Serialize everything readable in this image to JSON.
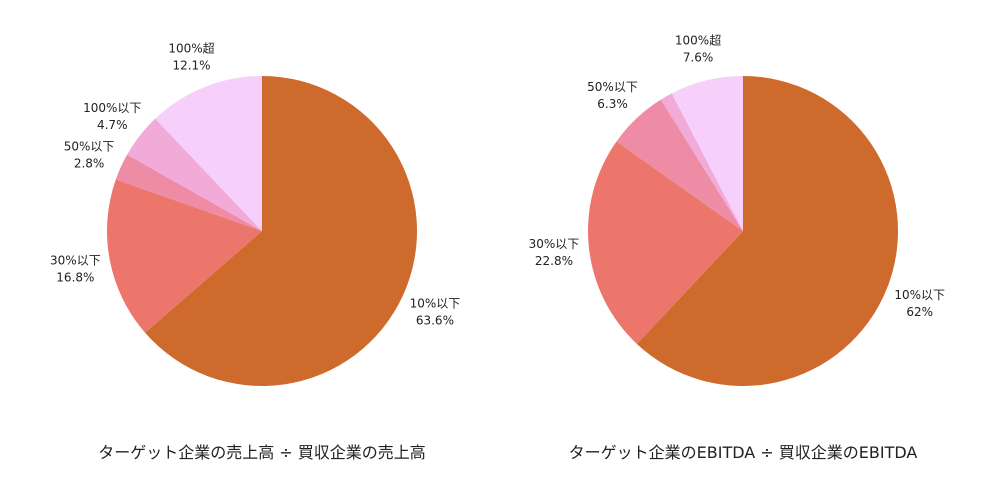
{
  "colors": {
    "10%以下": "#CD6A2C",
    "30%以下": "#EC756C",
    "50%以下": "#EE8BA5",
    "100%以下": "#F2AAD8",
    "100%超": "#F6CFFB"
  },
  "chart_data": [
    {
      "type": "pie",
      "title": "ターゲット企業の売上高 ÷ 買収企業の売上高",
      "slices": [
        {
          "label": "10%以下",
          "value": 63.6,
          "value_label": "63.6%"
        },
        {
          "label": "30%以下",
          "value": 16.8,
          "value_label": "16.8%"
        },
        {
          "label": "50%以下",
          "value": 2.8,
          "value_label": "2.8%"
        },
        {
          "label": "100%以下",
          "value": 4.7,
          "value_label": "4.7%"
        },
        {
          "label": "100%超",
          "value": 12.1,
          "value_label": "12.1%"
        }
      ],
      "start_angle": "top",
      "direction": "clockwise"
    },
    {
      "type": "pie",
      "title": "ターゲット企業のEBITDA ÷ 買収企業のEBITDA",
      "slices": [
        {
          "label": "10%以下",
          "value": 62,
          "value_label": "62%"
        },
        {
          "label": "30%以下",
          "value": 22.8,
          "value_label": "22.8%"
        },
        {
          "label": "50%以下",
          "value": 6.3,
          "value_label": "6.3%"
        },
        {
          "label": "100%以下",
          "value": 1.3,
          "value_label": ""
        },
        {
          "label": "100%超",
          "value": 7.6,
          "value_label": "7.6%"
        }
      ],
      "start_angle": "top",
      "direction": "clockwise"
    }
  ]
}
